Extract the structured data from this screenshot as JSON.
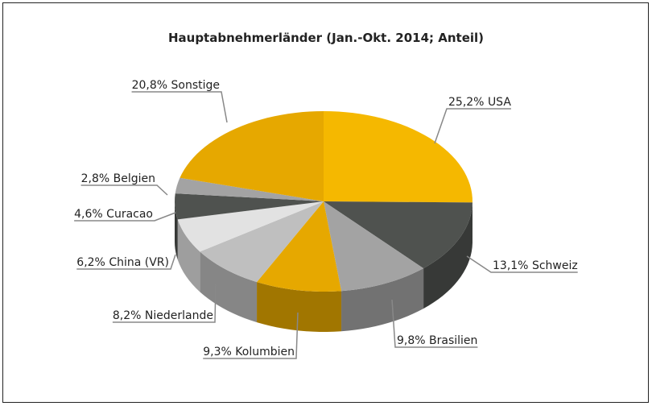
{
  "chart_data": {
    "type": "pie3d",
    "title": "Hauptabnehmerländer (Jan.-Okt. 2014; Anteil)",
    "categories": [
      "USA",
      "Schweiz",
      "Brasilien",
      "Kolumbien",
      "Niederlande",
      "China (VR)",
      "Curacao",
      "Belgien",
      "Sonstige"
    ],
    "values": [
      25.2,
      13.1,
      9.8,
      9.3,
      8.2,
      6.2,
      4.6,
      2.8,
      20.8
    ],
    "value_labels": [
      "25,2%",
      "13,1%",
      "9,8%",
      "9,3%",
      "8,2%",
      "6,2%",
      "4,6%",
      "2,8%",
      "20,8%"
    ],
    "colors": [
      "#f5b800",
      "#4f524f",
      "#a3a3a3",
      "#e6a800",
      "#bfbfbf",
      "#e2e2e2",
      "#4f524f",
      "#a3a3a3",
      "#e6a800"
    ]
  }
}
